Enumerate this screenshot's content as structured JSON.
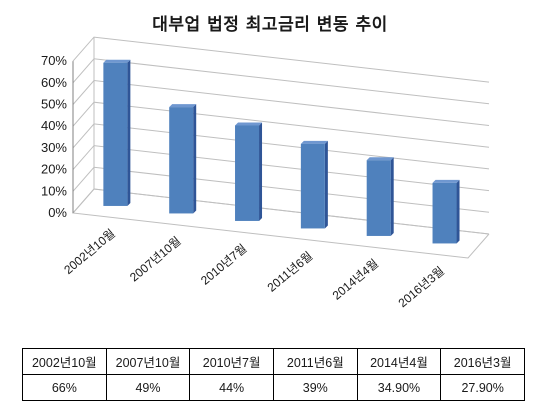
{
  "chart_data": {
    "type": "bar",
    "title": "대부업 법정 최고금리 변동 추이",
    "categories": [
      "2002년10월",
      "2007년10월",
      "2010년7월",
      "2011년6월",
      "2014년4월",
      "2016년3월"
    ],
    "values": [
      66,
      49,
      44,
      39,
      34.9,
      27.9
    ],
    "value_labels": [
      "66%",
      "49%",
      "44%",
      "39%",
      "34.90%",
      "27.90%"
    ],
    "y_ticks": [
      "0%",
      "10%",
      "20%",
      "30%",
      "40%",
      "50%",
      "60%",
      "70%"
    ],
    "ylim": [
      0,
      70
    ],
    "grid": true,
    "legend": "none",
    "style": "3d-column",
    "colors": {
      "bar_front": "#4f81bd",
      "bar_side": "#2f5597",
      "bar_top": "#6f97d0",
      "grid": "#bfbfbf"
    }
  }
}
